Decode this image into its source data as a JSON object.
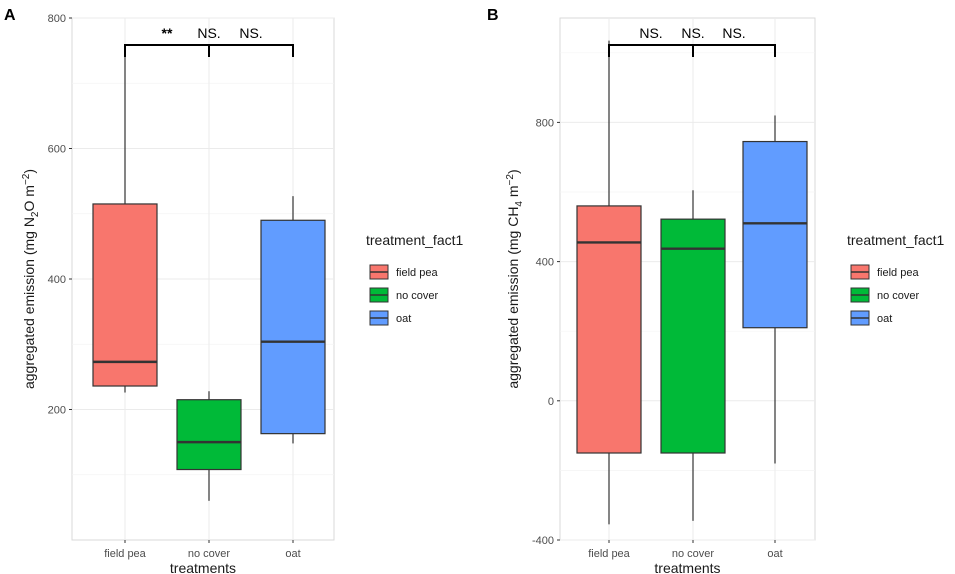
{
  "chart_data": [
    {
      "type": "boxplot",
      "panel_label": "A",
      "xlabel": "treatments",
      "ylabel_parts": [
        "aggregated emission (mg N",
        "2",
        "O m",
        "−2",
        ")"
      ],
      "categories": [
        "field pea",
        "no cover",
        "oat"
      ],
      "ylim": [
        0,
        800
      ],
      "y_ticks": [
        200,
        400,
        600,
        800
      ],
      "boxes": [
        {
          "category": "field pea",
          "min": 226,
          "q1": 236,
          "median": 273,
          "q3": 515,
          "max": 743
        },
        {
          "category": "no cover",
          "min": 60,
          "q1": 108,
          "median": 150,
          "q3": 215,
          "max": 228
        },
        {
          "category": "oat",
          "min": 148,
          "q1": 163,
          "median": 304,
          "q3": 490,
          "max": 527
        }
      ],
      "significance": [
        "**",
        "NS.",
        "NS."
      ],
      "legend_title": "treatment_fact1",
      "legend": [
        "field pea",
        "no cover",
        "oat"
      ]
    },
    {
      "type": "boxplot",
      "panel_label": "B",
      "xlabel": "treatments",
      "ylabel_parts": [
        "aggregated emission (mg CH",
        "4",
        " m",
        "−2",
        ")"
      ],
      "categories": [
        "field pea",
        "no cover",
        "oat"
      ],
      "ylim": [
        -400,
        1100
      ],
      "y_ticks": [
        -400,
        0,
        400,
        800
      ],
      "boxes": [
        {
          "category": "field pea",
          "min": -355,
          "q1": -150,
          "median": 455,
          "q3": 560,
          "max": 1035
        },
        {
          "category": "no cover",
          "min": -345,
          "q1": -150,
          "median": 437,
          "q3": 522,
          "max": 605
        },
        {
          "category": "oat",
          "min": -180,
          "q1": 210,
          "median": 510,
          "q3": 745,
          "max": 820
        }
      ],
      "significance": [
        "NS.",
        "NS.",
        "NS."
      ],
      "legend_title": "treatment_fact1",
      "legend": [
        "field pea",
        "no cover",
        "oat"
      ]
    }
  ],
  "colors": {
    "field pea": "#F8766D",
    "no cover": "#00BA38",
    "oat": "#619CFF"
  }
}
